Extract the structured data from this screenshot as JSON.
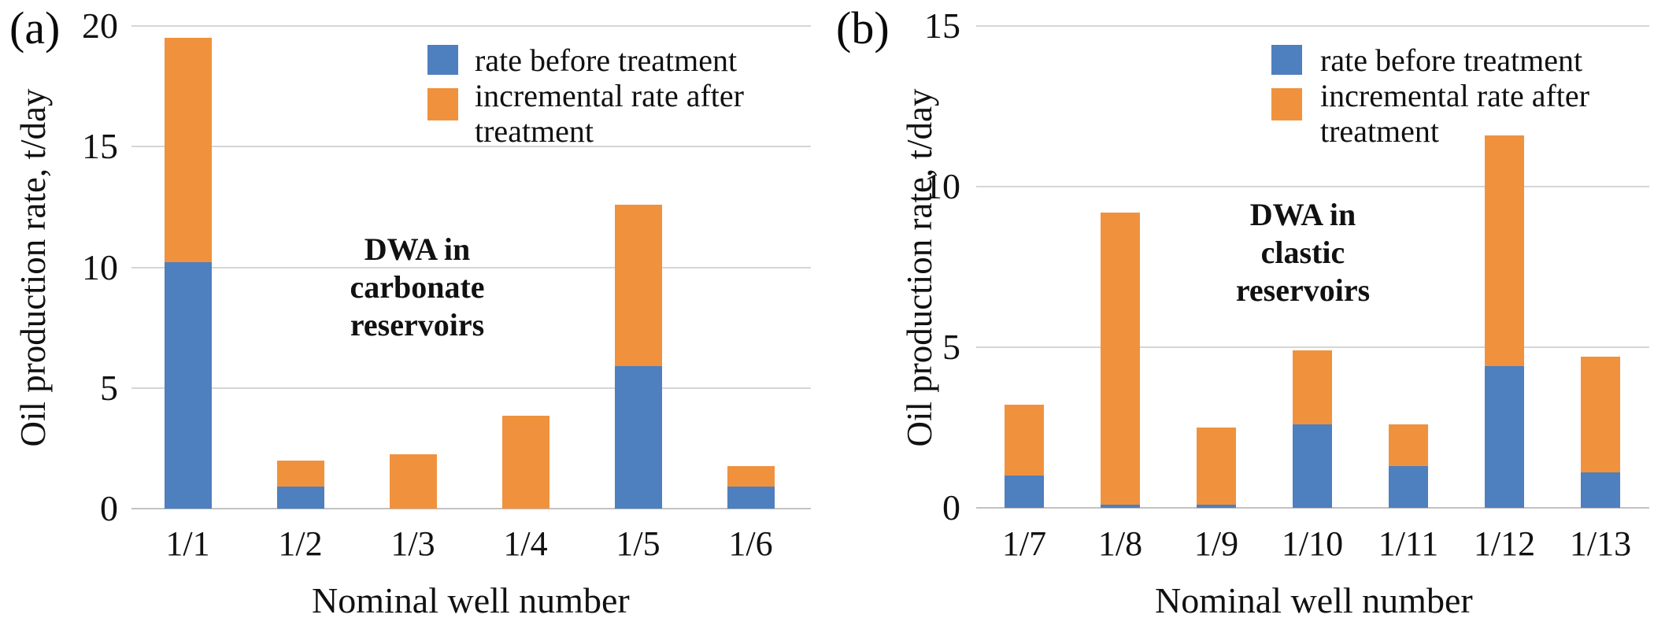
{
  "figure": {
    "background": "#ffffff",
    "text_color": "#111111",
    "gridline_color": "#d6d6d6",
    "axis_line_color": "#c2c2c2"
  },
  "chart_data": [
    {
      "id": "a",
      "type": "bar",
      "stacked": true,
      "title": "",
      "annotation": "DWA in carbonate reservoirs",
      "xlabel": "Nominal well number",
      "ylabel": "Oil production rate, t/day",
      "categories": [
        "1/1",
        "1/2",
        "1/3",
        "1/4",
        "1/5",
        "1/6"
      ],
      "series": [
        {
          "name": "rate before treatment",
          "color": "#4E7FBF",
          "values": [
            10.2,
            0.9,
            0,
            0,
            5.9,
            0.9
          ]
        },
        {
          "name": "incremental rate after treatment",
          "color": "#F0923D",
          "values": [
            9.3,
            1.1,
            2.25,
            3.85,
            6.7,
            0.85
          ]
        }
      ],
      "stack_totals": [
        19.5,
        2.0,
        2.25,
        3.85,
        12.6,
        1.75
      ],
      "ylim": [
        0,
        20
      ],
      "yticks": [
        0,
        5,
        10,
        15,
        20
      ],
      "grid": true,
      "legend_position": "top-right-inside"
    },
    {
      "id": "b",
      "type": "bar",
      "stacked": true,
      "title": "",
      "annotation": "DWA in clastic reservoirs",
      "xlabel": "Nominal well number",
      "ylabel": "Oil production rate, t/day",
      "categories": [
        "1/7",
        "1/8",
        "1/9",
        "1/10",
        "1/11",
        "1/12",
        "1/13"
      ],
      "series": [
        {
          "name": "rate before treatment",
          "color": "#4E7FBF",
          "values": [
            1.0,
            0.1,
            0.1,
            2.6,
            1.3,
            4.4,
            1.1
          ]
        },
        {
          "name": "incremental rate after treatment",
          "color": "#F0923D",
          "values": [
            2.2,
            9.1,
            2.4,
            2.3,
            1.3,
            7.2,
            3.6
          ]
        }
      ],
      "stack_totals": [
        3.2,
        9.2,
        2.5,
        4.9,
        2.6,
        11.6,
        4.7
      ],
      "ylim": [
        0,
        15
      ],
      "yticks": [
        0,
        5,
        10,
        15
      ],
      "grid": true,
      "legend_position": "top-right-inside"
    }
  ],
  "panels": [
    {
      "letter": "(a)",
      "ylabel": "Oil production rate, t/day",
      "xlabel": "Nominal well number",
      "annotation_lines": [
        "DWA in",
        "carbonate",
        "reservoirs"
      ],
      "legend": [
        {
          "color": "#4E7FBF",
          "lines": [
            "rate before treatment"
          ]
        },
        {
          "color": "#F0923D",
          "lines": [
            "incremental rate after",
            "treatment"
          ]
        }
      ]
    },
    {
      "letter": "(b)",
      "ylabel": "Oil production rate, t/day",
      "xlabel": "Nominal well number",
      "annotation_lines": [
        "DWA in",
        "clastic",
        "reservoirs"
      ],
      "legend": [
        {
          "color": "#4E7FBF",
          "lines": [
            "rate before treatment"
          ]
        },
        {
          "color": "#F0923D",
          "lines": [
            "incremental rate after",
            "treatment"
          ]
        }
      ]
    }
  ]
}
